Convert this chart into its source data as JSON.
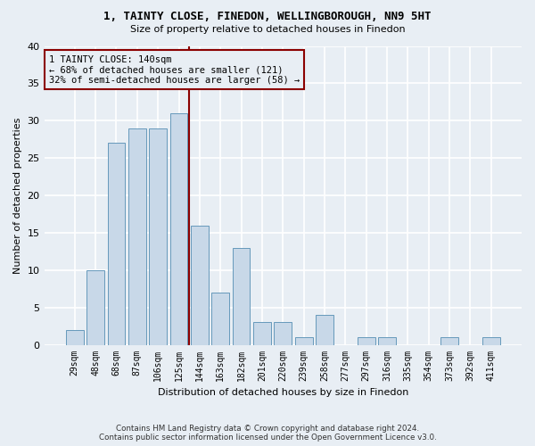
{
  "title1": "1, TAINTY CLOSE, FINEDON, WELLINGBOROUGH, NN9 5HT",
  "title2": "Size of property relative to detached houses in Finedon",
  "xlabel": "Distribution of detached houses by size in Finedon",
  "ylabel": "Number of detached properties",
  "categories": [
    "29sqm",
    "48sqm",
    "68sqm",
    "87sqm",
    "106sqm",
    "125sqm",
    "144sqm",
    "163sqm",
    "182sqm",
    "201sqm",
    "220sqm",
    "239sqm",
    "258sqm",
    "277sqm",
    "297sqm",
    "316sqm",
    "335sqm",
    "354sqm",
    "373sqm",
    "392sqm",
    "411sqm"
  ],
  "values": [
    2,
    10,
    27,
    29,
    29,
    31,
    16,
    7,
    13,
    3,
    3,
    1,
    4,
    0,
    1,
    1,
    0,
    0,
    1,
    0,
    1
  ],
  "bar_color": "#c8d8e8",
  "bar_edge_color": "#6699bb",
  "marker_line_index": 6,
  "annotation_line1": "1 TAINTY CLOSE: 140sqm",
  "annotation_line2": "← 68% of detached houses are smaller (121)",
  "annotation_line3": "32% of semi-detached houses are larger (58) →",
  "ylim": [
    0,
    40
  ],
  "yticks": [
    0,
    5,
    10,
    15,
    20,
    25,
    30,
    35,
    40
  ],
  "footer1": "Contains HM Land Registry data © Crown copyright and database right 2024.",
  "footer2": "Contains public sector information licensed under the Open Government Licence v3.0.",
  "bg_color": "#e8eef4",
  "grid_color": "#ffffff",
  "marker_color": "#8b0000"
}
